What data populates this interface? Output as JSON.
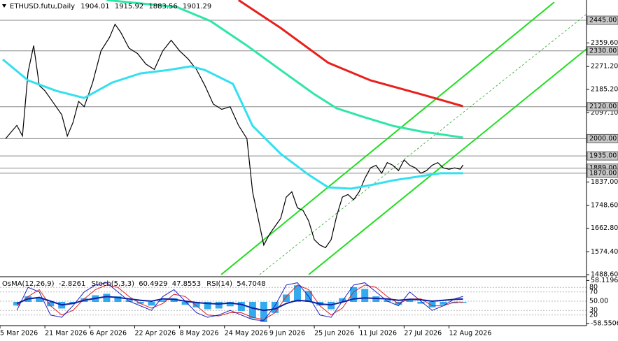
{
  "chart_data": {
    "type": "line",
    "symbol": "ETHUSD.futu,Daily",
    "ohlc": [
      1904.01,
      1915.92,
      1883.56,
      1901.29
    ],
    "xlim": [
      0,
      209
    ],
    "xticks": [
      {
        "value": 0,
        "label": "5 Mar 2026"
      },
      {
        "value": 16,
        "label": "21 Mar 2026"
      },
      {
        "value": 32,
        "label": "6 Apr 2026"
      },
      {
        "value": 48,
        "label": "22 Apr 2026"
      },
      {
        "value": 64,
        "label": "8 May 2026"
      },
      {
        "value": 80,
        "label": "24 May 2026"
      },
      {
        "value": 96,
        "label": "9 Jun 2026"
      },
      {
        "value": 112,
        "label": "25 Jun 2026"
      },
      {
        "value": 128,
        "label": "11 Jul 2026"
      },
      {
        "value": 144,
        "label": "27 Jul 2026"
      },
      {
        "value": 160,
        "label": "12 Aug 2026"
      }
    ],
    "ylim": [
      1483.5,
      2521.2
    ],
    "yticks": [
      {
        "value": 2359.6,
        "label": "2359.60"
      },
      {
        "value": 2271.2,
        "label": "2271.20"
      },
      {
        "value": 2185.2,
        "label": "2185.20"
      },
      {
        "value": 2097.1,
        "label": "2097.10"
      },
      {
        "value": 1837,
        "label": "1837.00"
      },
      {
        "value": 1748.6,
        "label": "1748.60"
      },
      {
        "value": 1662.8,
        "label": "1662.80"
      },
      {
        "value": 1574.4,
        "label": "1574.40"
      },
      {
        "value": 1488.6,
        "label": "1488.60"
      }
    ],
    "levels": [
      {
        "value": 2445,
        "label": "2445.00"
      },
      {
        "value": 2330,
        "label": "2330.00"
      },
      {
        "value": 2120,
        "label": "2120.00"
      },
      {
        "value": 2000,
        "label": "2000.00"
      },
      {
        "value": 1935,
        "label": "1935.00"
      },
      {
        "value": 1889,
        "label": "1889.00"
      },
      {
        "value": 1870,
        "label": "1870.00"
      }
    ],
    "series": [
      {
        "color": "#000000",
        "x": [
          2,
          6,
          8,
          10,
          12,
          14,
          16,
          18,
          20,
          22,
          24,
          26,
          28,
          30,
          33,
          36,
          39,
          41,
          43,
          46,
          49,
          52,
          55,
          58,
          61,
          64,
          67,
          70,
          73,
          76,
          79,
          82,
          85,
          88,
          90,
          92,
          94,
          96,
          98,
          100,
          102,
          104,
          106,
          108,
          110,
          112,
          114,
          116,
          118,
          120,
          122,
          124,
          126,
          128,
          130,
          132,
          134,
          136,
          138,
          140,
          142,
          144,
          146,
          148,
          150,
          152,
          154,
          156,
          158,
          160,
          162,
          164,
          165
        ],
        "values": [
          2000,
          2050,
          2010,
          2250,
          2350,
          2200,
          2180,
          2150,
          2120,
          2090,
          2010,
          2060,
          2140,
          2120,
          2210,
          2330,
          2380,
          2430,
          2400,
          2340,
          2320,
          2280,
          2260,
          2330,
          2370,
          2330,
          2300,
          2260,
          2200,
          2130,
          2110,
          2120,
          2050,
          2000,
          1800,
          1700,
          1600,
          1640,
          1670,
          1700,
          1780,
          1800,
          1740,
          1730,
          1690,
          1620,
          1600,
          1590,
          1620,
          1710,
          1780,
          1790,
          1770,
          1800,
          1850,
          1890,
          1900,
          1870,
          1910,
          1900,
          1880,
          1920,
          1900,
          1890,
          1870,
          1880,
          1900,
          1910,
          1890,
          1885,
          1890,
          1885,
          1901.29
        ]
      },
      {
        "color": "#33e0f0",
        "x": [
          1,
          10,
          20,
          30,
          40,
          50,
          60,
          68,
          73,
          83,
          90,
          100,
          110,
          117,
          125,
          132,
          140,
          150,
          157,
          165
        ],
        "values": [
          2298,
          2219,
          2180,
          2153,
          2211,
          2245,
          2258,
          2272,
          2258,
          2206,
          2048,
          1943,
          1864,
          1817,
          1812,
          1825,
          1843,
          1859,
          1870,
          1870
        ]
      },
      {
        "color": "#2ee6a8",
        "x": [
          38,
          63,
          75,
          88,
          100,
          112,
          120,
          130,
          140,
          150,
          165
        ],
        "values": [
          2521,
          2495,
          2442,
          2350,
          2258,
          2167,
          2114,
          2080,
          2048,
          2027,
          2004
        ]
      },
      {
        "color": "#e8201c",
        "x": [
          85,
          100,
          117,
          132,
          150,
          165
        ],
        "values": [
          2521,
          2416,
          2285,
          2219,
          2167,
          2122
        ]
      }
    ],
    "trendlines": [
      {
        "color": "#22dd22",
        "x": [
          78.8,
          197.5
        ],
        "values": [
          1488.8,
          2513
        ]
      },
      {
        "color": "#22aa22",
        "x": [
          92.5,
          209
        ],
        "values": [
          1488.8,
          2468
        ]
      },
      {
        "color": "#22dd22",
        "x": [
          110,
          209
        ],
        "values": [
          1488.8,
          2337
        ]
      }
    ],
    "indicators": {
      "osma_name": "OsMA(12,26,9)",
      "osma_value": -2.8261,
      "stoch_name": "Stoch(5,3,3)",
      "stoch_main": 60.4929,
      "stoch_signal": 47.8553,
      "rsi_name": "RSI(14)",
      "rsi_value": 54.7048,
      "osma_lim": [
        -62.6,
        66.4
      ],
      "osma_ticks": [
        58.1196,
        -58.5506
      ],
      "osc_lim": [
        0,
        100
      ],
      "osc_ticks": [
        80,
        70,
        {
          "value": 50,
          "label": "50.00"
        },
        30,
        20
      ],
      "x": [
        6,
        10,
        14,
        18,
        22,
        26,
        30,
        34,
        38,
        42,
        46,
        50,
        54,
        58,
        62,
        66,
        70,
        74,
        78,
        82,
        86,
        90,
        94,
        98,
        102,
        106,
        110,
        114,
        118,
        122,
        126,
        130,
        134,
        138,
        142,
        146,
        150,
        154,
        158,
        162,
        165
      ],
      "osma": [
        -10,
        15,
        10,
        -12,
        -18,
        -5,
        10,
        18,
        22,
        15,
        5,
        -5,
        -10,
        5,
        10,
        -8,
        -15,
        -20,
        -18,
        -12,
        -25,
        -45,
        -55,
        -30,
        20,
        45,
        30,
        -10,
        -20,
        10,
        40,
        35,
        15,
        5,
        -8,
        8,
        -5,
        -15,
        -8,
        -4,
        -2.8261
      ],
      "rsi": [
        45,
        55,
        58,
        50,
        42,
        45,
        52,
        56,
        60,
        58,
        55,
        52,
        50,
        55,
        54,
        50,
        47,
        45,
        44,
        46,
        43,
        35,
        30,
        33,
        45,
        52,
        50,
        44,
        42,
        48,
        55,
        57,
        56,
        55,
        52,
        54,
        53,
        50,
        52,
        54,
        54.7048
      ],
      "stoch_k": [
        30,
        80,
        70,
        20,
        15,
        40,
        70,
        85,
        90,
        70,
        50,
        40,
        30,
        60,
        75,
        50,
        25,
        15,
        20,
        30,
        20,
        10,
        8,
        40,
        85,
        90,
        60,
        20,
        15,
        50,
        85,
        90,
        70,
        50,
        40,
        70,
        50,
        30,
        40,
        55,
        60.4929
      ],
      "stoch_d": [
        40,
        60,
        75,
        40,
        20,
        30,
        55,
        75,
        85,
        80,
        60,
        45,
        35,
        45,
        65,
        60,
        40,
        20,
        18,
        25,
        25,
        15,
        10,
        25,
        60,
        85,
        75,
        40,
        20,
        35,
        70,
        85,
        80,
        60,
        45,
        55,
        55,
        40,
        40,
        48,
        47.8553
      ]
    }
  }
}
